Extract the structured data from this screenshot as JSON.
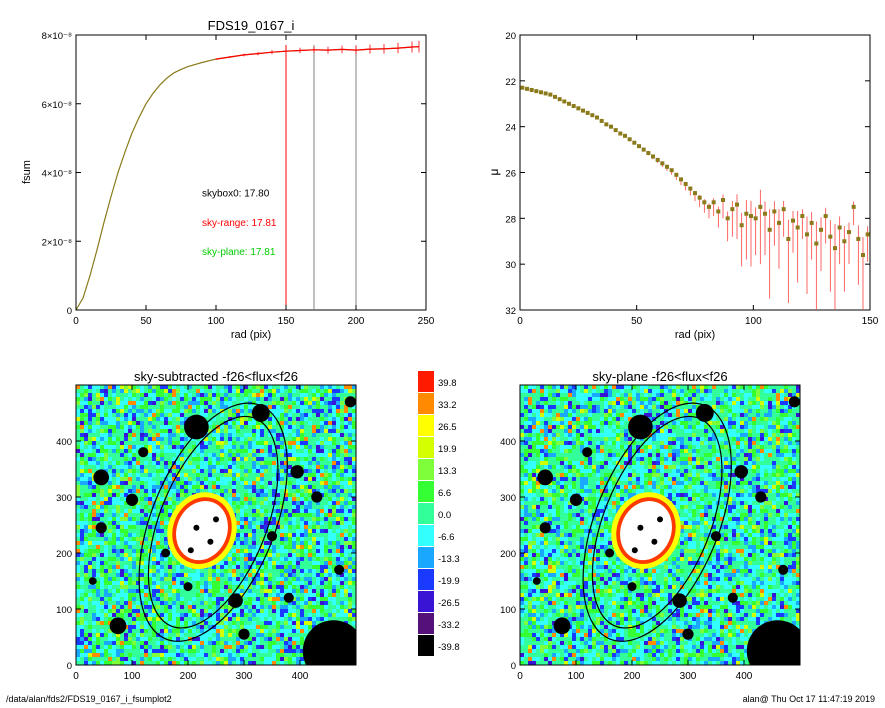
{
  "footer": {
    "path": "/data/alan/fds2/FDS19_0167_i_fsumplot2",
    "stamp": "alan@  Thu Oct 17 11:47:19 2019"
  },
  "colors": {
    "black": "#000000",
    "red": "#ff0000",
    "green": "#00cc00",
    "olive": "#8a7a1a",
    "gray": "#808080"
  },
  "chart_data": [
    {
      "id": "fsum",
      "type": "line",
      "title": "FDS19_0167_i",
      "xlabel": "rad (pix)",
      "ylabel": "fsum",
      "xlim": [
        0,
        250
      ],
      "ylim": [
        0,
        8e-08
      ],
      "x_ticks": [
        "0",
        "50",
        "100",
        "150",
        "200",
        "250"
      ],
      "x_tick_values": [
        0,
        50,
        100,
        150,
        200,
        250
      ],
      "y_ticks": [
        "0",
        "2×10⁻⁸",
        "4×10⁻⁸",
        "6×10⁻⁸",
        "8×10⁻⁸"
      ],
      "y_tick_values": [
        0,
        2e-08,
        4e-08,
        6e-08,
        8e-08
      ],
      "series": [
        {
          "color": "#8a7a1a",
          "x": [
            0,
            5,
            10,
            15,
            20,
            25,
            30,
            35,
            40,
            45,
            50,
            55,
            60,
            65,
            70,
            75,
            80,
            90,
            100,
            110,
            120,
            130,
            140,
            150,
            160,
            170,
            180,
            190,
            200,
            210,
            220,
            230,
            240,
            245
          ],
          "y": [
            0,
            3.5e-09,
            1e-08,
            1.75e-08,
            2.55e-08,
            3.3e-08,
            4e-08,
            4.6e-08,
            5.15e-08,
            5.6e-08,
            6e-08,
            6.3e-08,
            6.55e-08,
            6.75e-08,
            6.9e-08,
            7e-08,
            7.08e-08,
            7.2e-08,
            7.3e-08,
            7.36e-08,
            7.42e-08,
            7.46e-08,
            7.5e-08,
            7.53e-08,
            7.55e-08,
            7.57e-08,
            7.56e-08,
            7.58e-08,
            7.56e-08,
            7.59e-08,
            7.6e-08,
            7.62e-08,
            7.65e-08,
            7.66e-08
          ]
        },
        {
          "color": "#ff0000",
          "errorbars": true,
          "x": [
            100,
            110,
            120,
            130,
            140,
            150,
            160,
            170,
            180,
            190,
            200,
            210,
            220,
            230,
            240,
            245
          ],
          "y": [
            7.3e-08,
            7.36e-08,
            7.42e-08,
            7.46e-08,
            7.5e-08,
            7.53e-08,
            7.55e-08,
            7.57e-08,
            7.56e-08,
            7.58e-08,
            7.56e-08,
            7.59e-08,
            7.6e-08,
            7.62e-08,
            7.65e-08,
            7.66e-08
          ],
          "err": [
            2e-10,
            3e-10,
            4e-10,
            5e-10,
            6e-10,
            7e-10,
            8e-10,
            9e-10,
            1e-09,
            1.1e-09,
            1.2e-09,
            1.3e-09,
            1.4e-09,
            1.5e-09,
            1.6e-09,
            1.7e-09
          ]
        }
      ],
      "vlines": [
        {
          "x": 150,
          "color": "#ff0000"
        },
        {
          "x": 170,
          "color": "#808080"
        },
        {
          "x": 200,
          "color": "#808080"
        }
      ],
      "annotations": [
        {
          "text": "skybox0: 17.80",
          "color": "#000000",
          "x": 90,
          "y": 3.3e-08
        },
        {
          "text": "sky-range: 17.81",
          "color": "#ff0000",
          "x": 90,
          "y": 2.45e-08
        },
        {
          "text": "sky-plane: 17.81",
          "color": "#00cc00",
          "x": 90,
          "y": 1.6e-08
        }
      ]
    },
    {
      "id": "mu",
      "type": "scatter",
      "title": "",
      "xlabel": "rad (pix)",
      "ylabel": "μ",
      "xlim": [
        0,
        150
      ],
      "ylim": [
        20,
        32
      ],
      "y_inverted": true,
      "x_ticks": [
        "0",
        "50",
        "100",
        "150"
      ],
      "x_tick_values": [
        0,
        50,
        100,
        150
      ],
      "y_ticks": [
        "20",
        "22",
        "24",
        "26",
        "28",
        "30",
        "32"
      ],
      "y_tick_values": [
        20,
        22,
        24,
        26,
        28,
        30,
        32
      ],
      "series": [
        {
          "color": "#8a7a1a",
          "x": [
            1,
            3,
            5,
            7,
            9,
            11,
            13,
            15,
            17,
            19,
            21,
            23,
            25,
            27,
            29,
            31,
            33,
            35,
            37,
            39,
            41,
            43,
            45,
            47,
            49,
            51,
            53,
            55,
            57,
            59,
            61,
            63,
            65,
            67,
            69,
            71,
            73,
            75,
            77,
            79,
            81,
            83,
            85,
            87,
            89,
            91,
            93,
            95,
            97,
            99,
            101,
            103,
            105,
            107,
            109,
            111,
            113,
            115,
            117,
            119,
            121,
            123,
            125,
            127,
            129,
            131,
            133,
            135,
            137,
            139,
            141,
            143,
            145,
            147,
            149
          ],
          "y": [
            22.3,
            22.35,
            22.4,
            22.45,
            22.5,
            22.55,
            22.6,
            22.7,
            22.8,
            22.9,
            23.0,
            23.1,
            23.2,
            23.3,
            23.4,
            23.5,
            23.6,
            23.75,
            23.9,
            24.0,
            24.15,
            24.3,
            24.4,
            24.55,
            24.7,
            24.85,
            25.0,
            25.15,
            25.3,
            25.45,
            25.6,
            25.75,
            25.9,
            26.1,
            26.3,
            26.5,
            26.7,
            26.9,
            27.1,
            27.3,
            27.5,
            27.3,
            27.7,
            27.2,
            28.0,
            27.6,
            27.4,
            28.3,
            27.8,
            27.9,
            28.0,
            27.5,
            27.8,
            28.5,
            27.7,
            28.2,
            27.6,
            28.9,
            28.1,
            28.4,
            27.9,
            28.7,
            28.2,
            29.1,
            28.5,
            27.9,
            28.8,
            29.3,
            28.4,
            29.0,
            28.6,
            27.5,
            28.9,
            29.6,
            28.7
          ],
          "err": [
            0.05,
            0.05,
            0.05,
            0.05,
            0.05,
            0.05,
            0.05,
            0.05,
            0.05,
            0.05,
            0.05,
            0.05,
            0.05,
            0.05,
            0.05,
            0.05,
            0.05,
            0.05,
            0.05,
            0.05,
            0.05,
            0.05,
            0.05,
            0.05,
            0.05,
            0.05,
            0.08,
            0.1,
            0.12,
            0.14,
            0.16,
            0.18,
            0.2,
            0.22,
            0.25,
            0.28,
            0.3,
            0.35,
            0.4,
            0.45,
            0.5,
            0.6,
            0.7,
            0.8,
            1.0,
            1.2,
            1.5,
            1.8,
            2.0,
            2.2,
            1.6,
            2.5,
            1.8,
            3.0,
            1.5,
            2.0,
            1.2,
            2.8,
            1.4,
            2.4,
            1.0,
            2.6,
            1.6,
            3.2,
            1.8,
            1.2,
            2.4,
            3.5,
            1.6,
            2.2,
            1.4,
            0.8,
            2.0,
            2.6,
            1.2
          ]
        }
      ]
    },
    {
      "id": "sky-subtracted",
      "type": "heatmap",
      "title": "sky-subtracted -f26<flux<f26",
      "xlim": [
        0,
        500
      ],
      "ylim": [
        0,
        500
      ],
      "x_ticks": [
        "0",
        "100",
        "200",
        "300",
        "400"
      ],
      "x_tick_values": [
        0,
        100,
        200,
        300,
        400
      ],
      "y_ticks": [
        "0",
        "100",
        "200",
        "300",
        "400"
      ],
      "y_tick_values": [
        0,
        100,
        200,
        300,
        400
      ],
      "ellipses": [
        {
          "cx": 245,
          "cy": 255,
          "rx": 95,
          "ry": 200,
          "angle_deg": 22
        },
        {
          "cx": 245,
          "cy": 255,
          "rx": 110,
          "ry": 225,
          "angle_deg": 22
        }
      ],
      "masked_sources": [
        {
          "x": 225,
          "y": 240,
          "r": 45
        },
        {
          "x": 460,
          "y": 25,
          "r": 55
        },
        {
          "x": 330,
          "y": 450,
          "r": 16
        },
        {
          "x": 215,
          "y": 425,
          "r": 22
        },
        {
          "x": 45,
          "y": 335,
          "r": 14
        },
        {
          "x": 100,
          "y": 295,
          "r": 11
        },
        {
          "x": 75,
          "y": 70,
          "r": 15
        },
        {
          "x": 285,
          "y": 115,
          "r": 13
        },
        {
          "x": 395,
          "y": 345,
          "r": 12
        },
        {
          "x": 430,
          "y": 300,
          "r": 10
        },
        {
          "x": 120,
          "y": 380,
          "r": 9
        },
        {
          "x": 300,
          "y": 55,
          "r": 10
        },
        {
          "x": 45,
          "y": 245,
          "r": 10
        },
        {
          "x": 350,
          "y": 230,
          "r": 9
        },
        {
          "x": 160,
          "y": 200,
          "r": 8
        },
        {
          "x": 200,
          "y": 140,
          "r": 8
        },
        {
          "x": 470,
          "y": 170,
          "r": 9
        },
        {
          "x": 30,
          "y": 150,
          "r": 7
        },
        {
          "x": 490,
          "y": 470,
          "r": 10
        },
        {
          "x": 380,
          "y": 120,
          "r": 9
        }
      ]
    },
    {
      "id": "sky-plane",
      "type": "heatmap",
      "title": "sky-plane -f26<flux<f26",
      "xlim": [
        0,
        500
      ],
      "ylim": [
        0,
        500
      ],
      "x_ticks": [
        "0",
        "100",
        "200",
        "300",
        "400"
      ],
      "x_tick_values": [
        0,
        100,
        200,
        300,
        400
      ],
      "y_ticks": [
        "0",
        "100",
        "200",
        "300",
        "400"
      ],
      "y_tick_values": [
        0,
        100,
        200,
        300,
        400
      ],
      "ellipses": [
        {
          "cx": 245,
          "cy": 255,
          "rx": 95,
          "ry": 200,
          "angle_deg": 22
        },
        {
          "cx": 245,
          "cy": 255,
          "rx": 110,
          "ry": 225,
          "angle_deg": 22
        }
      ],
      "masked_sources": [
        {
          "x": 225,
          "y": 240,
          "r": 45
        },
        {
          "x": 460,
          "y": 25,
          "r": 55
        },
        {
          "x": 330,
          "y": 450,
          "r": 16
        },
        {
          "x": 215,
          "y": 425,
          "r": 22
        },
        {
          "x": 45,
          "y": 335,
          "r": 14
        },
        {
          "x": 100,
          "y": 295,
          "r": 11
        },
        {
          "x": 75,
          "y": 70,
          "r": 15
        },
        {
          "x": 285,
          "y": 115,
          "r": 13
        },
        {
          "x": 395,
          "y": 345,
          "r": 12
        },
        {
          "x": 430,
          "y": 300,
          "r": 10
        },
        {
          "x": 120,
          "y": 380,
          "r": 9
        },
        {
          "x": 300,
          "y": 55,
          "r": 10
        },
        {
          "x": 45,
          "y": 245,
          "r": 10
        },
        {
          "x": 350,
          "y": 230,
          "r": 9
        },
        {
          "x": 160,
          "y": 200,
          "r": 8
        },
        {
          "x": 200,
          "y": 140,
          "r": 8
        },
        {
          "x": 470,
          "y": 170,
          "r": 9
        },
        {
          "x": 30,
          "y": 150,
          "r": 7
        },
        {
          "x": 490,
          "y": 470,
          "r": 10
        },
        {
          "x": 380,
          "y": 120,
          "r": 9
        }
      ]
    }
  ],
  "colorbar": {
    "labels": [
      "39.8",
      "33.2",
      "26.5",
      "19.9",
      "13.3",
      "6.6",
      "0.0",
      "-6.6",
      "-13.3",
      "-19.9",
      "-26.5",
      "-33.2",
      "-39.8"
    ],
    "colors": [
      "#ff1a00",
      "#ff8a00",
      "#ffff00",
      "#d4ff00",
      "#7fff3a",
      "#33ff33",
      "#33ff9a",
      "#33ffff",
      "#1aa8ff",
      "#1a3aff",
      "#3a14d4",
      "#55107a",
      "#000000"
    ]
  }
}
